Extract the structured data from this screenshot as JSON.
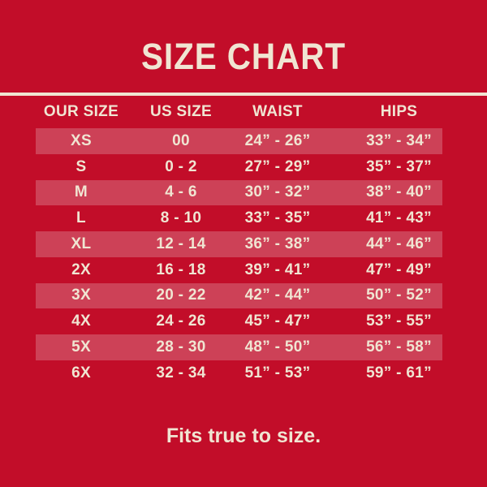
{
  "title": "SIZE CHART",
  "footer": "Fits true to size.",
  "colors": {
    "background": "#C20D29",
    "stripe": "#CD4157",
    "text": "#F0E5D2"
  },
  "chart_data": {
    "type": "table",
    "title": "SIZE CHART",
    "columns": [
      "OUR SIZE",
      "US SIZE",
      "WAIST",
      "HIPS"
    ],
    "rows": [
      [
        "XS",
        "00",
        "24” - 26”",
        "33” - 34”"
      ],
      [
        "S",
        "0 - 2",
        "27” - 29”",
        "35” - 37”"
      ],
      [
        "M",
        "4 - 6",
        "30” - 32”",
        "38” - 40”"
      ],
      [
        "L",
        "8 - 10",
        "33” - 35”",
        "41” - 43”"
      ],
      [
        "XL",
        "12 - 14",
        "36” - 38”",
        "44” - 46”"
      ],
      [
        "2X",
        "16 - 18",
        "39” - 41”",
        "47” - 49”"
      ],
      [
        "3X",
        "20 - 22",
        "42” - 44”",
        "50” - 52”"
      ],
      [
        "4X",
        "24 - 26",
        "45” - 47”",
        "53” - 55”"
      ],
      [
        "5X",
        "28 - 30",
        "48” - 50”",
        "56” - 58”"
      ],
      [
        "6X",
        "32 - 34",
        "51” - 53”",
        "59” - 61”"
      ]
    ],
    "note": "Fits true to size.",
    "striped_rows": [
      0,
      2,
      4,
      6,
      8
    ]
  }
}
